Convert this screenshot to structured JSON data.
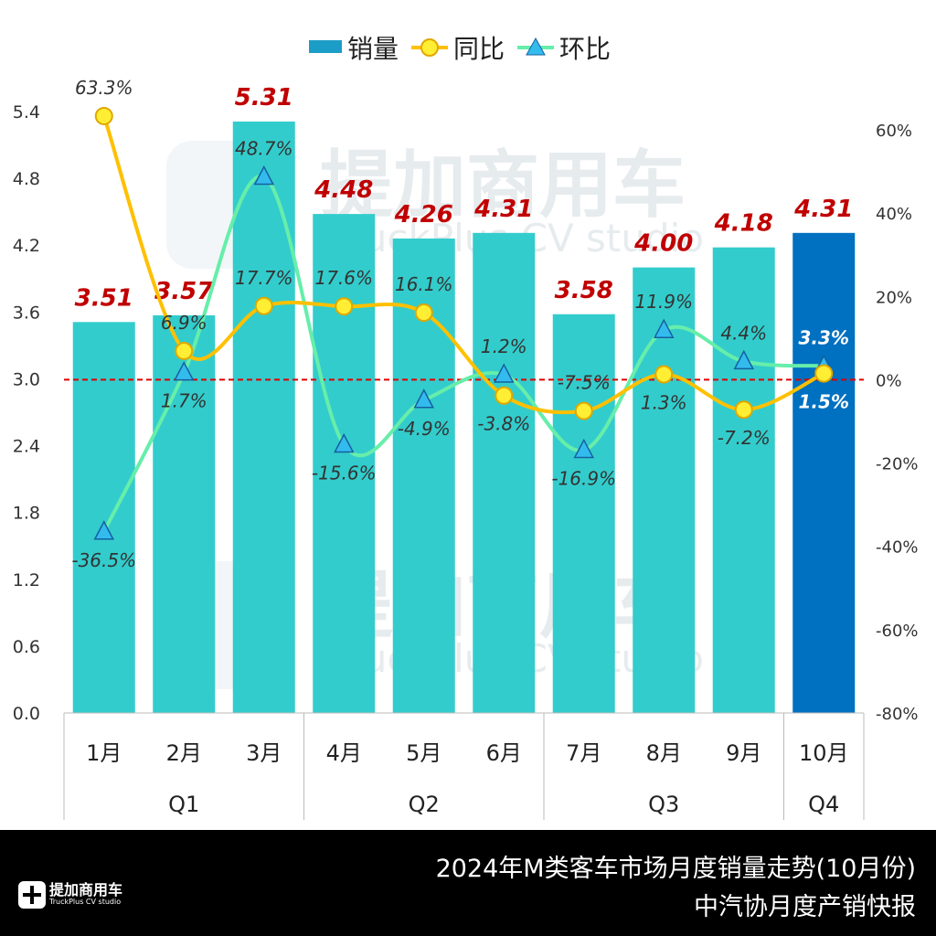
{
  "chart_data": {
    "type": "bar",
    "categories": [
      "1月",
      "2月",
      "3月",
      "4月",
      "5月",
      "6月",
      "7月",
      "8月",
      "9月",
      "10月"
    ],
    "groups": [
      {
        "label": "Q1",
        "span": 3
      },
      {
        "label": "Q2",
        "span": 3
      },
      {
        "label": "Q3",
        "span": 3
      },
      {
        "label": "Q4",
        "span": 1
      }
    ],
    "series": [
      {
        "name": "销量",
        "type": "bar",
        "axis": "left",
        "values": [
          3.51,
          3.57,
          5.31,
          4.48,
          4.26,
          4.31,
          3.58,
          4.0,
          4.18,
          4.31
        ],
        "labels": [
          "3.51",
          "3.57",
          "5.31",
          "4.48",
          "4.26",
          "4.31",
          "3.58",
          "4.00",
          "4.18",
          "4.31"
        ],
        "color": "#33CCCC",
        "highlight_color": "#0070C0"
      },
      {
        "name": "同比",
        "type": "line",
        "axis": "right",
        "values": [
          63.3,
          6.9,
          17.7,
          17.6,
          16.1,
          -3.8,
          -7.5,
          1.3,
          -7.2,
          1.5
        ],
        "labels": [
          "63.3%",
          "6.9%",
          "17.7%",
          "17.6%",
          "16.1%",
          "-3.8%",
          "-7.5%",
          "1.3%",
          "-7.2%",
          "1.5%"
        ],
        "color": "#FFC000",
        "marker": "circle"
      },
      {
        "name": "环比",
        "type": "line",
        "axis": "right",
        "values": [
          -36.5,
          1.7,
          48.7,
          -15.6,
          -4.9,
          1.2,
          -16.9,
          11.9,
          4.4,
          3.3
        ],
        "labels": [
          "-36.5%",
          "1.7%",
          "48.7%",
          "-15.6%",
          "-4.9%",
          "1.2%",
          "-16.9%",
          "11.9%",
          "4.4%",
          "3.3%"
        ],
        "color": "#66EEAA",
        "marker": "triangle"
      }
    ],
    "left_axis": {
      "ylim": [
        0,
        5.4
      ],
      "ticks": [
        "0.0",
        "0.6",
        "1.2",
        "1.8",
        "2.4",
        "3.0",
        "3.6",
        "4.2",
        "4.8",
        "5.4"
      ]
    },
    "right_axis": {
      "ylim": [
        -80,
        60
      ],
      "ticks": [
        "-80%",
        "-60%",
        "-40%",
        "-20%",
        "0%",
        "20%",
        "40%",
        "60%"
      ]
    },
    "reference_line": {
      "value": 0,
      "axis": "right",
      "color": "#E00000",
      "style": "dashed"
    },
    "legend": "top-center",
    "grid": false,
    "watermark": "提加商用车 TruckPlus CV studio"
  },
  "footer": {
    "title": "2024年M类客车市场月度销量走势(10月份)",
    "subtitle": "中汽协月度产销快报",
    "logo_text": "提加商用车",
    "logo_sub": "TruckPlus CV studio"
  }
}
